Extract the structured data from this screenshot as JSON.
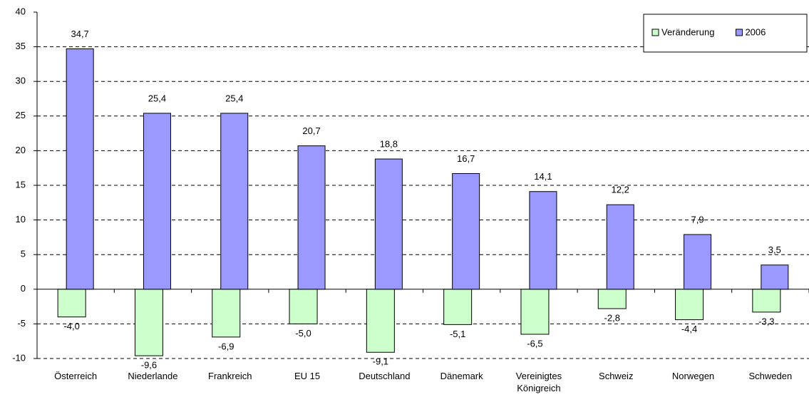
{
  "chart_data": {
    "type": "bar",
    "categories": [
      "Österreich",
      "Niederlande",
      "Frankreich",
      "EU 15",
      "Deutschland",
      "Dänemark",
      "Vereinigtes Königreich",
      "Schweiz",
      "Norwegen",
      "Schweden"
    ],
    "series": [
      {
        "name": "Veränderung",
        "color": "#ccffcc",
        "values": [
          -4.0,
          -9.6,
          -6.9,
          -5.0,
          -9.1,
          -5.1,
          -6.5,
          -2.8,
          -4.4,
          -3.3
        ],
        "value_labels": [
          "-4,0",
          "-9,6",
          "-6,9",
          "-5,0",
          "-9,1",
          "-5,1",
          "-6,5",
          "-2,8",
          "-4,4",
          "-3,3"
        ]
      },
      {
        "name": "2006",
        "color": "#9999ff",
        "values": [
          34.7,
          25.4,
          25.4,
          20.7,
          18.8,
          16.7,
          14.1,
          12.2,
          7.9,
          3.5
        ],
        "value_labels": [
          "34,7",
          "25,4",
          "25,4",
          "20,7",
          "18,8",
          "16,7",
          "14,1",
          "12,2",
          "7,9",
          "3,5"
        ]
      }
    ],
    "ylim": [
      -10,
      40
    ],
    "yticks": [
      -10,
      -5,
      0,
      5,
      10,
      15,
      20,
      25,
      30,
      35,
      40
    ],
    "grid": true,
    "legend": "top-right"
  }
}
